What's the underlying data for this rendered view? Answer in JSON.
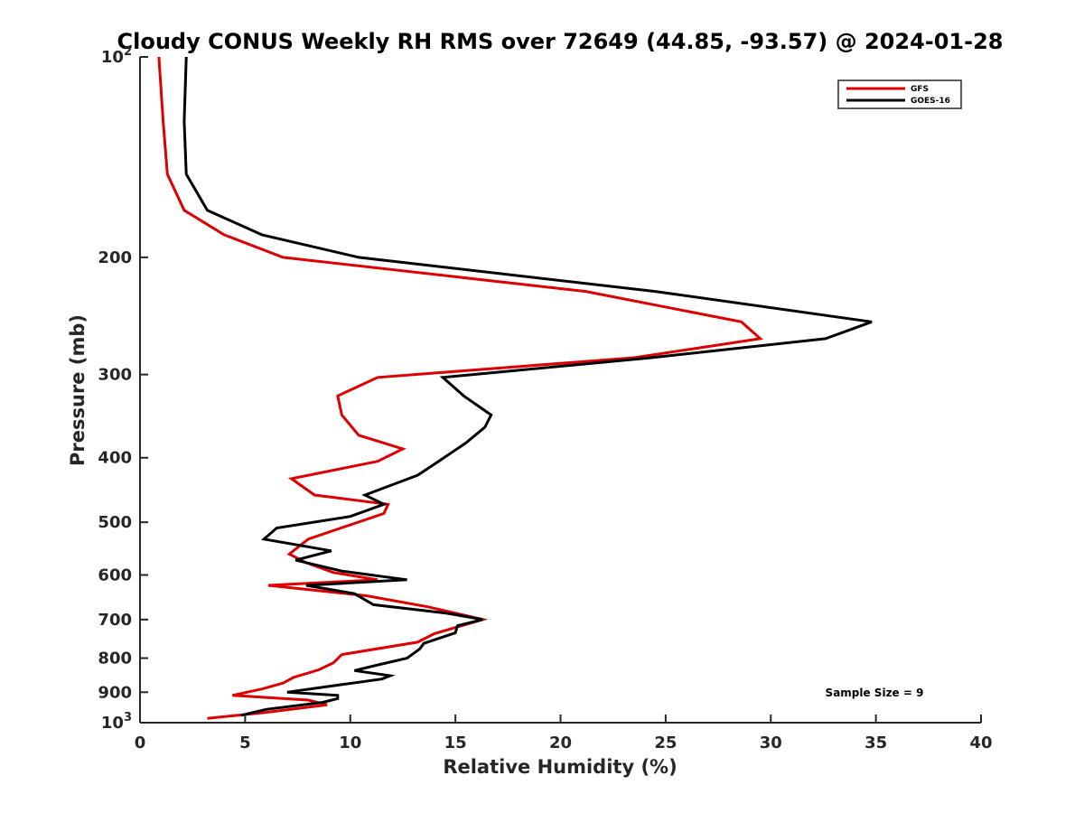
{
  "chart_data": {
    "type": "line",
    "title": "Cloudy CONUS Weekly RH RMS over 72649 (44.85, -93.57) @ 2024-01-28",
    "xlabel": "Relative Humidity (%)",
    "ylabel": "Pressure (mb)",
    "xlim": [
      0,
      40
    ],
    "ylim": [
      100,
      1000
    ],
    "y_scale": "log",
    "y_reversed": true,
    "grid": false,
    "legend_position": "top-right",
    "x_ticks": [
      "0",
      "5",
      "10",
      "15",
      "20",
      "25",
      "30",
      "35",
      "40"
    ],
    "x_tick_values": [
      0,
      5,
      10,
      15,
      20,
      25,
      30,
      35,
      40
    ],
    "y_ticks": [
      {
        "value": 100,
        "base": "10",
        "exp": "2"
      },
      {
        "value": 200,
        "label": "200"
      },
      {
        "value": 300,
        "label": "300"
      },
      {
        "value": 400,
        "label": "400"
      },
      {
        "value": 500,
        "label": "500"
      },
      {
        "value": 600,
        "label": "600"
      },
      {
        "value": 700,
        "label": "700"
      },
      {
        "value": 800,
        "label": "800"
      },
      {
        "value": 900,
        "label": "900"
      },
      {
        "value": 1000,
        "base": "10",
        "exp": "3"
      }
    ],
    "annotation": "Sample Size = 9",
    "series": [
      {
        "name": "GFS",
        "color": "#dd0000",
        "points": [
          [
            0.9,
            100
          ],
          [
            1.1,
            125
          ],
          [
            1.3,
            150
          ],
          [
            2.1,
            170
          ],
          [
            4.0,
            185
          ],
          [
            6.8,
            200
          ],
          [
            21.2,
            225
          ],
          [
            28.6,
            250
          ],
          [
            29.5,
            265
          ],
          [
            23.5,
            283
          ],
          [
            11.3,
            303
          ],
          [
            9.4,
            323
          ],
          [
            9.6,
            345
          ],
          [
            10.4,
            370
          ],
          [
            12.5,
            388
          ],
          [
            11.3,
            405
          ],
          [
            7.2,
            430
          ],
          [
            8.3,
            455
          ],
          [
            11.8,
            470
          ],
          [
            11.6,
            485
          ],
          [
            8.0,
            530
          ],
          [
            7.1,
            558
          ],
          [
            7.9,
            575
          ],
          [
            9.2,
            595
          ],
          [
            11.3,
            610
          ],
          [
            6.1,
            622
          ],
          [
            10.8,
            645
          ],
          [
            13.7,
            670
          ],
          [
            16.3,
            700
          ],
          [
            14.0,
            735
          ],
          [
            13.2,
            757
          ],
          [
            9.6,
            790
          ],
          [
            9.2,
            813
          ],
          [
            8.5,
            833
          ],
          [
            7.3,
            855
          ],
          [
            6.8,
            872
          ],
          [
            5.8,
            890
          ],
          [
            4.4,
            910
          ],
          [
            8.0,
            925
          ],
          [
            8.9,
            940
          ],
          [
            6.0,
            965
          ],
          [
            3.2,
            985
          ]
        ]
      },
      {
        "name": "GOES-16",
        "color": "#000000",
        "points": [
          [
            2.2,
            100
          ],
          [
            2.1,
            125
          ],
          [
            2.2,
            150
          ],
          [
            3.2,
            170
          ],
          [
            5.8,
            185
          ],
          [
            10.4,
            200
          ],
          [
            24.5,
            225
          ],
          [
            34.8,
            250
          ],
          [
            32.6,
            265
          ],
          [
            24.3,
            283
          ],
          [
            14.4,
            303
          ],
          [
            15.4,
            323
          ],
          [
            16.7,
            345
          ],
          [
            16.4,
            360
          ],
          [
            15.5,
            380
          ],
          [
            14.2,
            405
          ],
          [
            13.2,
            425
          ],
          [
            10.7,
            455
          ],
          [
            11.6,
            470
          ],
          [
            10.0,
            490
          ],
          [
            6.5,
            510
          ],
          [
            5.9,
            530
          ],
          [
            9.1,
            552
          ],
          [
            7.4,
            570
          ],
          [
            9.6,
            592
          ],
          [
            12.7,
            610
          ],
          [
            7.9,
            622
          ],
          [
            10.2,
            640
          ],
          [
            11.1,
            665
          ],
          [
            14.6,
            685
          ],
          [
            16.3,
            700
          ],
          [
            15.1,
            715
          ],
          [
            15.0,
            733
          ],
          [
            13.5,
            760
          ],
          [
            13.3,
            775
          ],
          [
            12.7,
            800
          ],
          [
            11.6,
            815
          ],
          [
            10.2,
            835
          ],
          [
            11.9,
            850
          ],
          [
            11.5,
            860
          ],
          [
            9.2,
            880
          ],
          [
            7.0,
            900
          ],
          [
            9.4,
            910
          ],
          [
            9.4,
            920
          ],
          [
            8.7,
            932
          ],
          [
            6.0,
            955
          ],
          [
            4.8,
            975
          ]
        ]
      }
    ]
  }
}
